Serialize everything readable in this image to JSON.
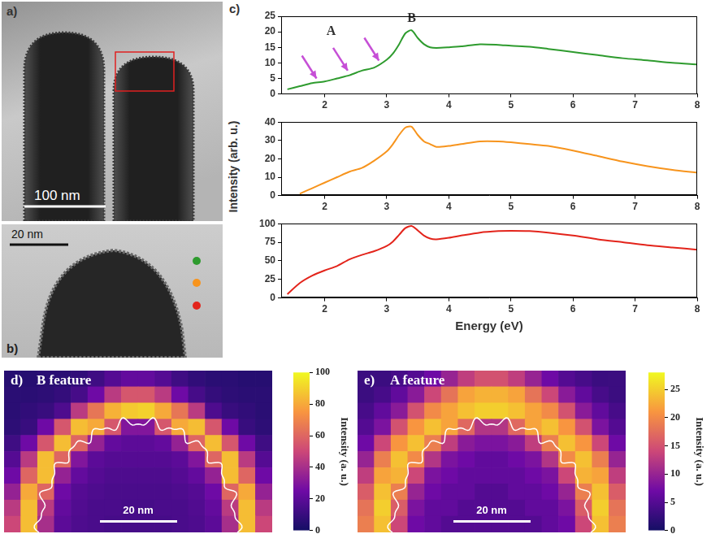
{
  "images": [
    {
      "panel": "a)",
      "scale_bar": "100 nm"
    },
    {
      "panel": "b)",
      "scale_bar": "20 nm",
      "markers": [
        "#2e9b2e",
        "#f7941d",
        "#e3241b"
      ]
    }
  ],
  "chart_data": [
    {
      "type": "line",
      "panel": "c)",
      "x_label": "Energy (eV)",
      "y_label": "Intensity (arb. u.)",
      "annotations": [
        "A",
        "B"
      ],
      "xlim": [
        1.3,
        8
      ],
      "xticks": [
        2,
        3,
        4,
        5,
        6,
        7,
        8
      ],
      "x": [
        1.4,
        1.6,
        1.8,
        2.0,
        2.2,
        2.4,
        2.6,
        2.8,
        3.0,
        3.1,
        3.2,
        3.3,
        3.4,
        3.5,
        3.6,
        3.7,
        3.8,
        4.0,
        4.2,
        4.5,
        4.8,
        5.0,
        5.3,
        5.6,
        6.0,
        6.4,
        6.8,
        7.2,
        7.6,
        8.0
      ],
      "subplots": [
        {
          "color": "#2e9b2e",
          "ylim": [
            0,
            25
          ],
          "yticks": [
            0,
            5,
            10,
            15,
            20,
            25
          ],
          "values": [
            1.5,
            2.5,
            3.5,
            4,
            5,
            6,
            7.5,
            8.5,
            11,
            13,
            16,
            19.5,
            20.5,
            18,
            16,
            15,
            14.8,
            15,
            15.3,
            16,
            15.8,
            15.5,
            15.2,
            14.5,
            13.5,
            12.5,
            11.5,
            10.8,
            10,
            9.5
          ]
        },
        {
          "color": "#f7941d",
          "ylim": [
            0,
            40
          ],
          "yticks": [
            0,
            10,
            20,
            30,
            40
          ],
          "values": [
            null,
            1,
            4,
            7,
            10,
            13,
            15,
            19,
            24,
            28,
            33,
            37,
            37.5,
            33,
            29.5,
            28,
            26.5,
            27,
            28,
            29.5,
            29.5,
            29,
            28,
            27,
            24.5,
            21.5,
            18.5,
            16,
            14,
            12.5
          ]
        },
        {
          "color": "#e3241b",
          "ylim": [
            0,
            100
          ],
          "yticks": [
            0,
            25,
            50,
            75,
            100
          ],
          "values": [
            5,
            20,
            30,
            37,
            43,
            52,
            58,
            63,
            70,
            76,
            85,
            94,
            97,
            91,
            84,
            80,
            79,
            81,
            84,
            88,
            90,
            90.5,
            90,
            88,
            84,
            79,
            75,
            71,
            68,
            65
          ]
        }
      ]
    },
    {
      "type": "heatmap",
      "panel": "d)",
      "title": "B feature",
      "scale_bar": "20 nm",
      "tick_labels": false,
      "cells": [
        [
          5,
          5,
          6,
          6,
          8,
          12,
          18,
          22,
          22,
          18,
          12,
          8,
          6,
          6,
          5,
          5
        ],
        [
          6,
          6,
          7,
          9,
          14,
          25,
          45,
          55,
          55,
          45,
          25,
          14,
          9,
          7,
          6,
          6
        ],
        [
          6,
          8,
          10,
          16,
          45,
          65,
          82,
          88,
          90,
          80,
          65,
          45,
          16,
          10,
          8,
          6
        ],
        [
          7,
          10,
          25,
          55,
          85,
          80,
          55,
          30,
          30,
          55,
          80,
          85,
          55,
          25,
          10,
          7
        ],
        [
          12,
          25,
          55,
          85,
          60,
          35,
          22,
          20,
          20,
          22,
          35,
          60,
          85,
          55,
          25,
          12
        ],
        [
          18,
          45,
          85,
          60,
          30,
          20,
          18,
          18,
          18,
          18,
          20,
          30,
          60,
          85,
          45,
          18
        ],
        [
          25,
          60,
          85,
          35,
          22,
          18,
          16,
          16,
          16,
          16,
          18,
          22,
          35,
          85,
          60,
          25
        ],
        [
          35,
          80,
          60,
          25,
          18,
          16,
          15,
          15,
          15,
          15,
          16,
          18,
          25,
          60,
          80,
          35
        ],
        [
          45,
          85,
          45,
          22,
          17,
          15,
          15,
          14,
          14,
          15,
          15,
          17,
          22,
          45,
          85,
          45
        ],
        [
          50,
          85,
          40,
          20,
          16,
          15,
          14,
          14,
          14,
          14,
          15,
          16,
          20,
          40,
          85,
          50
        ]
      ],
      "colorbar": {
        "label": "Intensity (a. u.)",
        "range": [
          0,
          100
        ],
        "ticks": [
          0,
          20,
          40,
          60,
          80,
          100
        ]
      }
    },
    {
      "type": "heatmap",
      "panel": "e)",
      "title": "A feature",
      "scale_bar": "20 nm",
      "tick_labels": false,
      "cells": [
        [
          3,
          3,
          4,
          5,
          7,
          10,
          13,
          15,
          15,
          13,
          10,
          7,
          5,
          4,
          3,
          3
        ],
        [
          3,
          4,
          6,
          9,
          14,
          18,
          22,
          23,
          23,
          22,
          18,
          14,
          9,
          6,
          4,
          3
        ],
        [
          4,
          6,
          9,
          15,
          20,
          22,
          24,
          25,
          25,
          24,
          22,
          20,
          15,
          9,
          6,
          4
        ],
        [
          5,
          8,
          15,
          21,
          24,
          22,
          17,
          12,
          12,
          17,
          22,
          24,
          21,
          15,
          8,
          5
        ],
        [
          7,
          14,
          21,
          24,
          19,
          13,
          9,
          8,
          8,
          9,
          13,
          19,
          24,
          21,
          14,
          7
        ],
        [
          10,
          19,
          24,
          20,
          12,
          8,
          7,
          6,
          6,
          7,
          8,
          12,
          20,
          24,
          19,
          10
        ],
        [
          13,
          22,
          23,
          14,
          8,
          7,
          6,
          6,
          6,
          6,
          7,
          8,
          14,
          23,
          22,
          13
        ],
        [
          16,
          24,
          19,
          10,
          7,
          6,
          6,
          5,
          5,
          6,
          6,
          7,
          10,
          19,
          24,
          16
        ],
        [
          18,
          25,
          16,
          8,
          6,
          6,
          5,
          5,
          5,
          5,
          6,
          6,
          8,
          16,
          25,
          18
        ],
        [
          19,
          24,
          14,
          7,
          6,
          5,
          5,
          5,
          5,
          5,
          5,
          6,
          7,
          14,
          24,
          19
        ]
      ],
      "colorbar": {
        "label": "Intensity (a. u.)",
        "range": [
          0,
          28
        ],
        "ticks": [
          0,
          5,
          10,
          15,
          20,
          25
        ]
      }
    }
  ]
}
